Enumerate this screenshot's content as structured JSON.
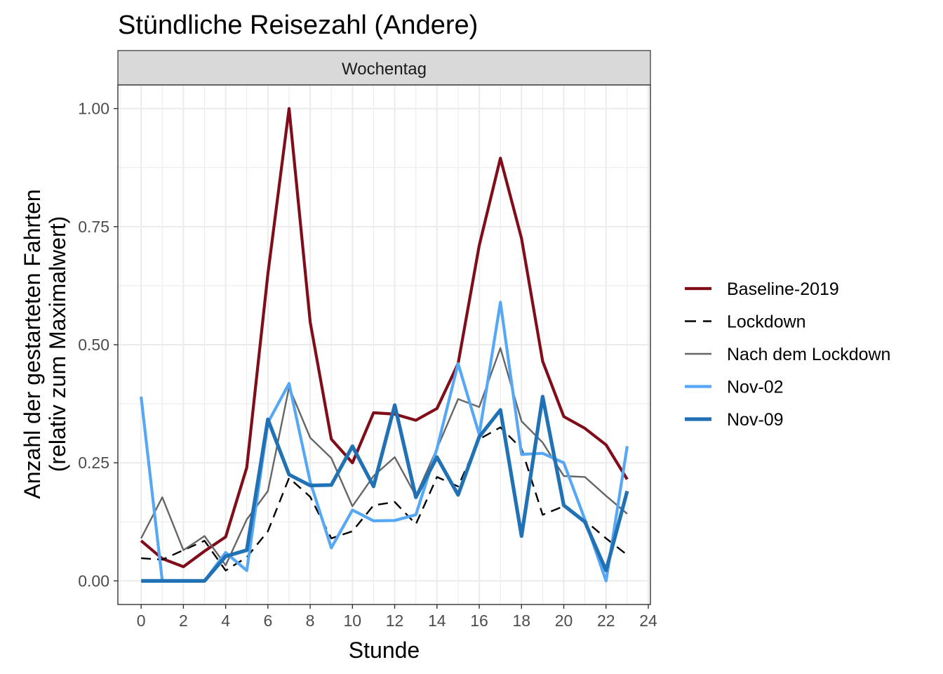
{
  "chart_data": {
    "type": "line",
    "title": "Stündliche Reisezahl (Andere)",
    "facet_label": "Wochentag",
    "xlabel": "Stunde",
    "ylabel": [
      "Anzahl der gestarteten Fahrten",
      "(relativ zum Maximalwert)"
    ],
    "xlim": [
      -1.1,
      24.1
    ],
    "ylim": [
      -0.05,
      1.05
    ],
    "x_ticks": [
      0,
      2,
      4,
      6,
      8,
      10,
      12,
      14,
      16,
      18,
      20,
      22,
      24
    ],
    "y_ticks": [
      0.0,
      0.25,
      0.5,
      0.75,
      1.0
    ],
    "y_tick_labels": [
      "0.00",
      "0.25",
      "0.50",
      "0.75",
      "1.00"
    ],
    "grid": true,
    "legend_position": "right",
    "x": [
      0,
      1,
      2,
      3,
      4,
      5,
      6,
      7,
      8,
      9,
      10,
      11,
      12,
      13,
      14,
      15,
      16,
      17,
      18,
      19,
      20,
      21,
      22,
      23
    ],
    "series": [
      {
        "name": "Baseline-2019",
        "color": "#7f0e1a",
        "style": "solid",
        "values": [
          0.085,
          0.047,
          0.03,
          0.063,
          0.093,
          0.24,
          0.65,
          1.0,
          0.548,
          0.3,
          0.25,
          0.356,
          0.353,
          0.34,
          0.365,
          0.46,
          0.71,
          0.895,
          0.725,
          0.465,
          0.348,
          0.323,
          0.288,
          0.215
        ]
      },
      {
        "name": "Lockdown",
        "color": "#000000",
        "style": "dashed",
        "values": [
          0.048,
          0.045,
          0.065,
          0.085,
          0.022,
          0.05,
          0.105,
          0.218,
          0.178,
          0.09,
          0.105,
          0.16,
          0.167,
          0.12,
          0.22,
          0.2,
          0.3,
          0.325,
          0.28,
          0.14,
          0.158,
          0.128,
          0.09,
          0.055
        ]
      },
      {
        "name": "Nach dem Lockdown",
        "color": "#666666",
        "style": "solid-thin",
        "values": [
          0.09,
          0.177,
          0.065,
          0.095,
          0.033,
          0.13,
          0.19,
          0.41,
          0.303,
          0.26,
          0.158,
          0.222,
          0.262,
          0.18,
          0.28,
          0.385,
          0.368,
          0.493,
          0.338,
          0.293,
          0.222,
          0.22,
          0.18,
          0.142
        ]
      },
      {
        "name": "Nov-02",
        "color": "#56a8f5",
        "style": "solid",
        "values": [
          0.39,
          0.0,
          0.0,
          0.0,
          0.06,
          0.022,
          0.335,
          0.418,
          0.21,
          0.07,
          0.15,
          0.127,
          0.128,
          0.14,
          0.28,
          0.46,
          0.31,
          0.59,
          0.268,
          0.27,
          0.25,
          0.13,
          0.0,
          0.285
        ]
      },
      {
        "name": "Nov-09",
        "color": "#2171b5",
        "style": "solid-thick",
        "values": [
          0.0,
          0.0,
          0.0,
          0.0,
          0.052,
          0.065,
          0.342,
          0.225,
          0.202,
          0.203,
          0.285,
          0.2,
          0.372,
          0.177,
          0.262,
          0.182,
          0.305,
          0.362,
          0.095,
          0.39,
          0.16,
          0.125,
          0.022,
          0.19
        ]
      }
    ]
  }
}
